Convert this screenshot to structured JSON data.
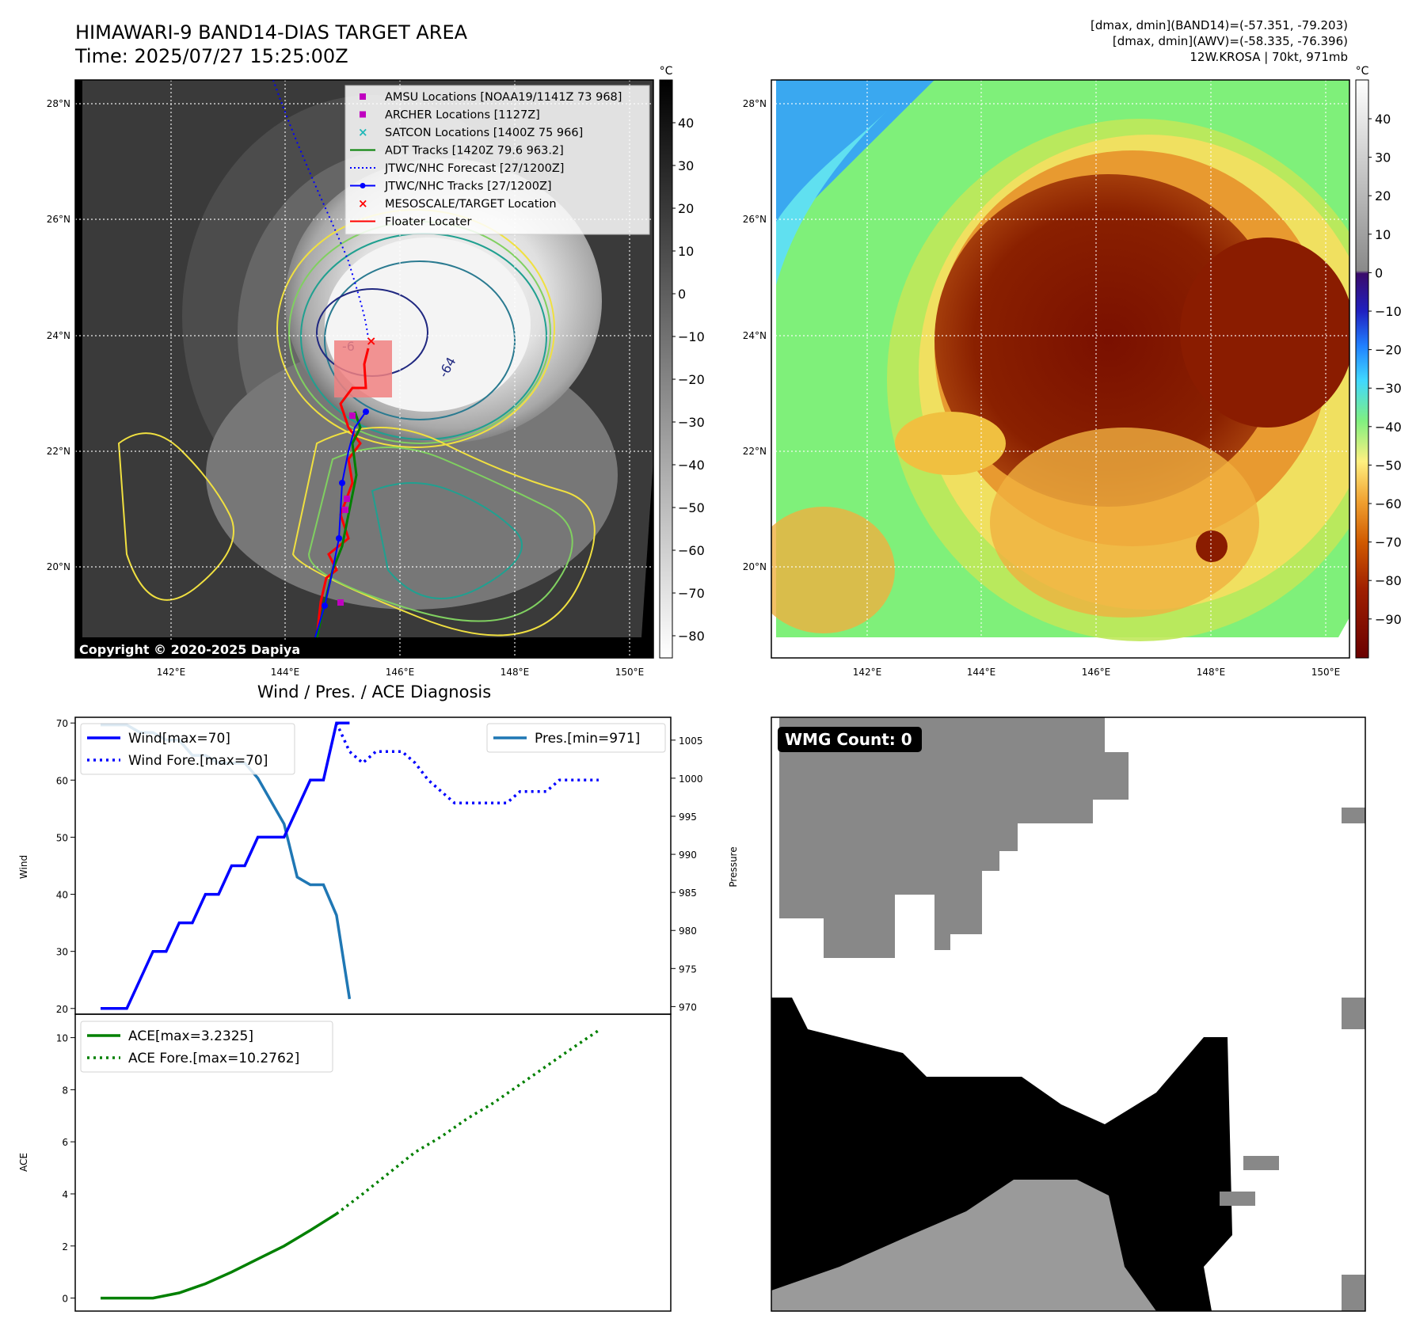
{
  "header": {
    "title_line1": "HIMAWARI-9 BAND14-DIAS TARGET AREA",
    "title_line2": "Time: 2025/07/27 15:25:00Z",
    "info_line1": "[dmax, dmin](BAND14)=(-57.351, -79.203)",
    "info_line2": "[dmax, dmin](AWV)=(-58.335, -76.396)",
    "info_line3": "12W.KROSA | 70kt, 971mb"
  },
  "map": {
    "lon_ticks": [
      "142°E",
      "144°E",
      "146°E",
      "148°E",
      "150°E"
    ],
    "lat_ticks": [
      "28°N",
      "26°N",
      "24°N",
      "22°N",
      "20°N"
    ],
    "copyright": "Copyright © 2020-2025 Dapiya",
    "contour_labels": [
      "-64",
      "-6"
    ],
    "legend": [
      {
        "label": "AMSU Locations [NOAA19/1141Z 73 968]",
        "color": "#c000c0",
        "marker": "square"
      },
      {
        "label": "ARCHER Locations [1127Z]",
        "color": "#c000c0",
        "marker": "square"
      },
      {
        "label": "SATCON Locations [1400Z 75 966]",
        "color": "#20b8b8",
        "marker": "x"
      },
      {
        "label": "ADT Tracks [1420Z 79.6 963.2]",
        "color": "#008000",
        "marker": "line"
      },
      {
        "label": "JTWC/NHC Forecast [27/1200Z]",
        "color": "#0000ff",
        "marker": "dotted"
      },
      {
        "label": "JTWC/NHC Tracks [27/1200Z]",
        "color": "#0000ff",
        "marker": "line-dot"
      },
      {
        "label": "MESOSCALE/TARGET Location",
        "color": "#ff0000",
        "marker": "x"
      },
      {
        "label": "Floater Locater",
        "color": "#ff0000",
        "marker": "line"
      }
    ]
  },
  "colorbar_left": {
    "unit": "°C",
    "ticks": [
      "40",
      "30",
      "20",
      "10",
      "0",
      "−10",
      "−20",
      "−30",
      "−40",
      "−50",
      "−60",
      "−70",
      "−80"
    ]
  },
  "colorbar_right": {
    "unit": "°C",
    "ticks": [
      "40",
      "30",
      "20",
      "10",
      "0",
      "−10",
      "−20",
      "−30",
      "−40",
      "−50",
      "−60",
      "−70",
      "−80",
      "−90"
    ]
  },
  "diagnosis": {
    "title": "Wind / Pres. / ACE Diagnosis",
    "wind_ylabel": "Wind",
    "pres_ylabel": "Pressure",
    "ace_ylabel": "ACE",
    "wind_ticks": [
      "70",
      "60",
      "50",
      "40",
      "30",
      "20"
    ],
    "pres_ticks": [
      "1005",
      "1000",
      "995",
      "990",
      "985",
      "980",
      "975",
      "970"
    ],
    "ace_ticks": [
      "10",
      "8",
      "6",
      "4",
      "2",
      "0"
    ],
    "legend_wind": "Wind[max=70]",
    "legend_wind_fore": "Wind Fore.[max=70]",
    "legend_pres": "Pres.[min=971]",
    "legend_ace": "ACE[max=3.2325]",
    "legend_ace_fore": "ACE Fore.[max=10.2762]"
  },
  "wmg": {
    "label": "WMG Count: 0"
  },
  "chart_data": [
    {
      "type": "line",
      "title": "Wind / Pres. / ACE Diagnosis",
      "ylabel": "Wind",
      "ylim": [
        19,
        71
      ],
      "series": [
        {
          "name": "Wind[max=70]",
          "color": "#0000ff",
          "style": "solid",
          "x": [
            0,
            1,
            2,
            3,
            4,
            5,
            6,
            7,
            8,
            9,
            10,
            11,
            12,
            13,
            14,
            15,
            16,
            17,
            18,
            19
          ],
          "values": [
            20,
            20,
            20,
            25,
            30,
            30,
            35,
            35,
            40,
            40,
            45,
            45,
            50,
            50,
            50,
            55,
            60,
            60,
            70,
            70
          ]
        },
        {
          "name": "Wind Fore.[max=70]",
          "color": "#0000ff",
          "style": "dotted",
          "x": [
            18,
            19,
            20,
            21,
            22,
            23,
            24,
            25,
            26,
            27,
            28,
            29,
            30,
            31,
            32,
            33,
            34,
            35,
            36,
            37,
            38
          ],
          "values": [
            70,
            65,
            63,
            65,
            65,
            65,
            63,
            60,
            58,
            56,
            56,
            56,
            56,
            56,
            58,
            58,
            58,
            60,
            60,
            60,
            60
          ]
        }
      ]
    },
    {
      "type": "line",
      "ylabel": "Pressure",
      "ylim": [
        969,
        1008
      ],
      "series": [
        {
          "name": "Pres.[min=971]",
          "color": "#1f77b4",
          "style": "solid",
          "x": [
            0,
            1,
            2,
            3,
            4,
            5,
            6,
            7,
            8,
            9,
            10,
            11,
            12,
            13,
            14,
            15,
            16,
            17,
            18,
            19
          ],
          "values": [
            1007,
            1007,
            1007,
            1006,
            1006,
            1005,
            1005,
            1003,
            1003,
            1002,
            1002,
            1002,
            1000,
            997,
            994,
            987,
            986,
            986,
            982,
            971
          ]
        }
      ]
    },
    {
      "type": "line",
      "ylabel": "ACE",
      "ylim": [
        -0.5,
        10.9
      ],
      "series": [
        {
          "name": "ACE[max=3.2325]",
          "color": "#008000",
          "style": "solid",
          "x": [
            0,
            2,
            4,
            6,
            8,
            10,
            12,
            14,
            16,
            18
          ],
          "values": [
            0,
            0,
            0,
            0.2,
            0.55,
            1.0,
            1.5,
            2.0,
            2.6,
            3.2325
          ]
        },
        {
          "name": "ACE Fore.[max=10.2762]",
          "color": "#008000",
          "style": "dotted",
          "x": [
            18,
            20,
            22,
            24,
            26,
            28,
            30,
            32,
            34,
            36,
            38
          ],
          "values": [
            3.2325,
            4.0,
            4.8,
            5.6,
            6.2,
            6.9,
            7.5,
            8.2,
            8.9,
            9.6,
            10.2762
          ]
        }
      ]
    }
  ]
}
